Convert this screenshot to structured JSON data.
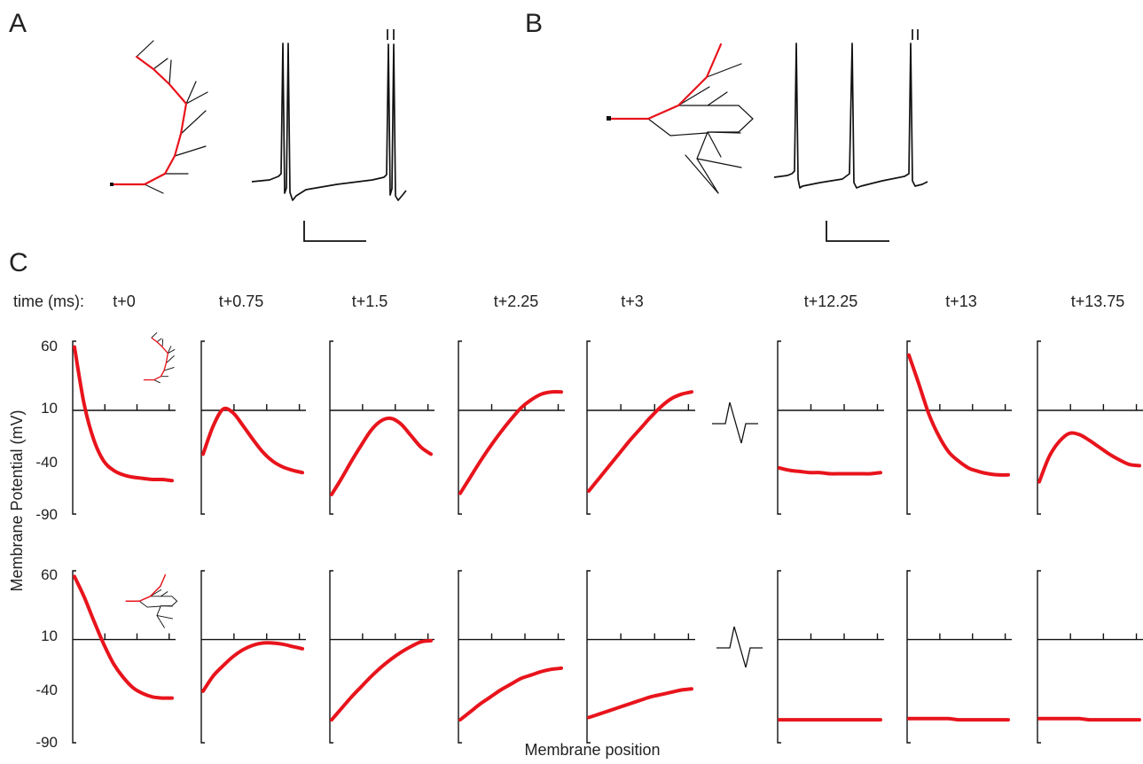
{
  "panels": {
    "a": "A",
    "b": "B",
    "c": "C"
  },
  "time_prefix": "time (ms):",
  "time_labels": [
    "t+0",
    "t+0.75",
    "t+1.5",
    "t+2.25",
    "t+3",
    "t+12.25",
    "t+13",
    "t+13.75"
  ],
  "colors": {
    "curve": "#e8141c",
    "axes": "#111111"
  },
  "chart_data": [
    {
      "type": "line",
      "title": "",
      "xlabel": "Membrane position",
      "ylabel": "Membrane Potential (mV)",
      "ylim": [
        -90,
        60
      ],
      "y_ticks": [
        "60",
        "10",
        "-40",
        "-90"
      ],
      "row": "A (linear dendrite)",
      "x": [
        0,
        0.1,
        0.2,
        0.3,
        0.4,
        0.5,
        0.6,
        0.7,
        0.8,
        0.9,
        1.0
      ],
      "series": [
        {
          "values": [
            55,
            5,
            -26,
            -44,
            -52,
            -56,
            -58,
            -59,
            -60,
            -60,
            -61
          ]
        },
        {
          "values": [
            -38,
            -14,
            1,
            -2,
            -13,
            -25,
            -36,
            -44,
            -49,
            -52,
            -54
          ]
        },
        {
          "values": [
            -73,
            -59,
            -44,
            -30,
            -17,
            -9,
            -7,
            -12,
            -22,
            -32,
            -38
          ]
        },
        {
          "values": [
            -72,
            -58,
            -44,
            -31,
            -19,
            -8,
            2,
            9,
            14,
            16,
            16
          ]
        },
        {
          "values": [
            -70,
            -59,
            -48,
            -37,
            -26,
            -16,
            -6,
            3,
            10,
            14,
            16
          ]
        },
        {
          "values": [
            -50,
            -52,
            -53,
            -54,
            -54,
            -55,
            -55,
            -55,
            -55,
            -55,
            -54
          ]
        },
        {
          "values": [
            48,
            23,
            -3,
            -22,
            -36,
            -44,
            -50,
            -53,
            -55,
            -56,
            -56
          ]
        },
        {
          "values": [
            -62,
            -40,
            -27,
            -20,
            -21,
            -26,
            -32,
            -38,
            -43,
            -47,
            -48
          ]
        }
      ]
    },
    {
      "type": "line",
      "title": "",
      "xlabel": "Membrane position",
      "ylabel": "Membrane Potential (mV)",
      "ylim": [
        -90,
        60
      ],
      "y_ticks": [
        "60",
        "10",
        "-40",
        "-90"
      ],
      "row": "B (branched dendrite)",
      "x": [
        0,
        0.1,
        0.2,
        0.3,
        0.4,
        0.5,
        0.6,
        0.7,
        0.8,
        0.9,
        1.0
      ],
      "series": [
        {
          "values": [
            55,
            37,
            16,
            -4,
            -21,
            -33,
            -42,
            -47,
            -50,
            -51,
            -51
          ]
        },
        {
          "values": [
            -45,
            -32,
            -23,
            -15,
            -9,
            -5,
            -3,
            -3,
            -4,
            -6,
            -8
          ]
        },
        {
          "values": [
            -70,
            -60,
            -50,
            -41,
            -32,
            -24,
            -17,
            -11,
            -6,
            -2,
            -1
          ]
        },
        {
          "values": [
            -70,
            -63,
            -56,
            -50,
            -44,
            -39,
            -34,
            -31,
            -28,
            -26,
            -25
          ]
        },
        {
          "values": [
            -68,
            -65,
            -62,
            -59,
            -56,
            -53,
            -50,
            -48,
            -46,
            -44,
            -43
          ]
        },
        {
          "values": [
            -70,
            -70,
            -70,
            -70,
            -70,
            -70,
            -70,
            -70,
            -70,
            -70,
            -70
          ]
        },
        {
          "values": [
            -69,
            -69,
            -69,
            -69,
            -69,
            -70,
            -70,
            -70,
            -70,
            -70,
            -70
          ]
        },
        {
          "values": [
            -69,
            -69,
            -69,
            -69,
            -69,
            -70,
            -70,
            -70,
            -70,
            -70,
            -70
          ]
        }
      ]
    }
  ]
}
